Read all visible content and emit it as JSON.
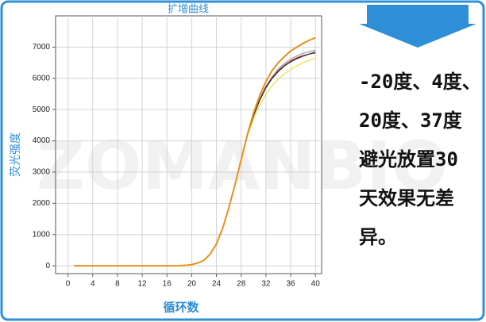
{
  "chart_data": {
    "type": "line",
    "title": "扩增曲线",
    "x_label": "循环数",
    "y_label": "荧光强度",
    "x": [
      1,
      2,
      3,
      4,
      5,
      6,
      7,
      8,
      9,
      10,
      11,
      12,
      13,
      14,
      15,
      16,
      17,
      18,
      19,
      20,
      21,
      22,
      23,
      24,
      25,
      26,
      27,
      28,
      29,
      30,
      31,
      32,
      33,
      34,
      35,
      36,
      37,
      38,
      39,
      40
    ],
    "series": [
      {
        "color": "#e8e03a",
        "values": [
          0,
          0,
          0,
          0,
          0,
          0,
          0,
          0,
          0,
          0,
          0,
          0,
          0,
          0,
          0,
          0,
          0,
          5,
          15,
          40,
          90,
          180,
          380,
          700,
          1200,
          1850,
          2600,
          3380,
          4150,
          4700,
          5150,
          5500,
          5780,
          5980,
          6140,
          6280,
          6400,
          6500,
          6580,
          6650
        ]
      },
      {
        "color": "#9b96a8",
        "values": [
          0,
          0,
          0,
          0,
          0,
          0,
          0,
          0,
          0,
          0,
          0,
          0,
          0,
          0,
          0,
          0,
          0,
          5,
          15,
          40,
          90,
          180,
          380,
          700,
          1200,
          1850,
          2600,
          3400,
          4200,
          4850,
          5350,
          5750,
          6050,
          6300,
          6480,
          6620,
          6720,
          6800,
          6860,
          6900
        ]
      },
      {
        "color": "#c0392b",
        "values": [
          0,
          0,
          0,
          0,
          0,
          0,
          0,
          0,
          0,
          0,
          0,
          0,
          0,
          0,
          0,
          0,
          0,
          5,
          15,
          40,
          90,
          180,
          380,
          700,
          1200,
          1850,
          2600,
          3400,
          4200,
          4820,
          5320,
          5720,
          6020,
          6250,
          6420,
          6560,
          6660,
          6730,
          6780,
          6810
        ]
      },
      {
        "color": "#2b2b2b",
        "values": [
          0,
          0,
          0,
          0,
          0,
          0,
          0,
          0,
          0,
          0,
          0,
          0,
          0,
          0,
          0,
          0,
          0,
          5,
          15,
          40,
          90,
          180,
          380,
          700,
          1200,
          1850,
          2600,
          3400,
          4200,
          4800,
          5300,
          5700,
          6000,
          6220,
          6400,
          6530,
          6630,
          6710,
          6780,
          6840
        ]
      },
      {
        "color": "#e8901c",
        "values": [
          0,
          0,
          0,
          0,
          0,
          0,
          0,
          0,
          0,
          0,
          0,
          0,
          0,
          0,
          0,
          0,
          0,
          5,
          15,
          40,
          90,
          180,
          380,
          700,
          1200,
          1850,
          2600,
          3400,
          4200,
          4900,
          5450,
          5900,
          6250,
          6500,
          6700,
          6880,
          7000,
          7120,
          7220,
          7300
        ]
      }
    ],
    "xlim": [
      -2,
      41
    ],
    "ylim": [
      -250,
      8000
    ],
    "xticks": [
      0,
      4,
      8,
      12,
      16,
      20,
      24,
      28,
      32,
      36,
      40
    ],
    "yticks": [
      0,
      1000,
      2000,
      3000,
      4000,
      5000,
      6000,
      7000
    ],
    "grid": true
  },
  "watermark": "ZOMANBIO",
  "note": {
    "lines": [
      "-20度、4度、",
      "20度、37度",
      "避光放置30",
      "天效果无差",
      "异。"
    ]
  }
}
